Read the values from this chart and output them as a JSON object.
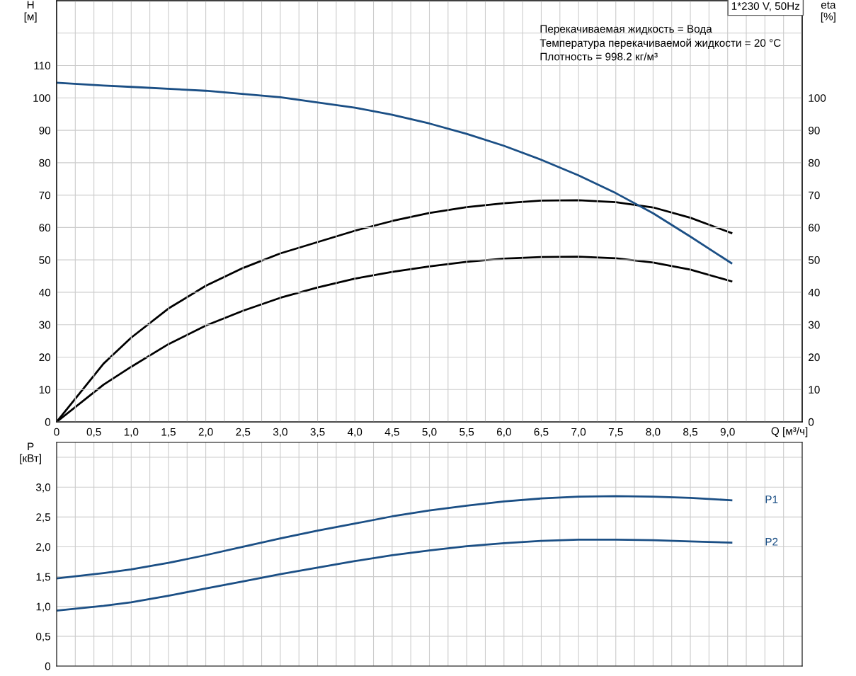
{
  "chart_data": [
    {
      "type": "line",
      "title": "1*230 V, 50Hz",
      "ylabel": "H\n[м]",
      "y2label": "eta\n[%]",
      "xlabel": "Q [м³/ч]",
      "annotations": [
        "Перекачиваемая жидкость = Вода",
        "Температура перекачиваемой жидкости = 20 °C",
        "Плотность = 998.2 кг/м³"
      ],
      "xlim": [
        0,
        10
      ],
      "ylim": [
        0,
        130
      ],
      "y2lim": [
        0,
        130
      ],
      "xticks": [
        0,
        {
          "value": 0.25,
          "label": null
        },
        {
          "value": 0.5,
          "label": "0,5"
        },
        {
          "value": 0.75,
          "label": null
        },
        {
          "value": 1.0,
          "label": "1,0"
        },
        {
          "value": 1.25,
          "label": null
        },
        {
          "value": 1.5,
          "label": "1,5"
        },
        {
          "value": 1.75,
          "label": null
        },
        {
          "value": 2.0,
          "label": "2,0"
        },
        {
          "value": 2.25,
          "label": null
        },
        {
          "value": 2.5,
          "label": "2,5"
        },
        {
          "value": 2.75,
          "label": null
        },
        {
          "value": 3.0,
          "label": "3,0"
        },
        {
          "value": 3.25,
          "label": null
        },
        {
          "value": 3.5,
          "label": "3,5"
        },
        {
          "value": 3.75,
          "label": null
        },
        {
          "value": 4.0,
          "label": "4,0"
        },
        {
          "value": 4.25,
          "label": null
        },
        {
          "value": 4.5,
          "label": "4,5"
        },
        {
          "value": 4.75,
          "label": null
        },
        {
          "value": 5.0,
          "label": "5,0"
        },
        {
          "value": 5.25,
          "label": null
        },
        {
          "value": 5.5,
          "label": "5,5"
        },
        {
          "value": 5.75,
          "label": null
        },
        {
          "value": 6.0,
          "label": "6,0"
        },
        {
          "value": 6.25,
          "label": null
        },
        {
          "value": 6.5,
          "label": "6,5"
        },
        {
          "value": 6.75,
          "label": null
        },
        {
          "value": 7.0,
          "label": "7,0"
        },
        {
          "value": 7.25,
          "label": null
        },
        {
          "value": 7.5,
          "label": "7,5"
        },
        {
          "value": 7.75,
          "label": null
        },
        {
          "value": 8.0,
          "label": "8,0"
        },
        {
          "value": 8.25,
          "label": null
        },
        {
          "value": 8.5,
          "label": "8,5"
        },
        {
          "value": 8.75,
          "label": null
        },
        {
          "value": 9.0,
          "label": "9,0"
        },
        {
          "value": 9.25,
          "label": null
        },
        {
          "value": 9.5,
          "label": null
        },
        {
          "value": 9.75,
          "label": null
        }
      ],
      "yticks": [
        0,
        10,
        20,
        30,
        40,
        50,
        60,
        70,
        80,
        90,
        100,
        110,
        {
          "value": 120,
          "label": null
        }
      ],
      "y2ticks": [
        0,
        10,
        20,
        30,
        40,
        50,
        60,
        70,
        80,
        90,
        100
      ],
      "grid": true,
      "legend": false,
      "series": [
        {
          "color": "#1b4f85",
          "x": [
            0,
            0.63,
            1,
            2,
            3,
            4,
            4.5,
            5,
            5.5,
            6,
            6.5,
            7,
            7.5,
            8,
            8.5,
            9.05
          ],
          "values": [
            104.7,
            103.8,
            103.4,
            102.2,
            100.2,
            97.0,
            94.8,
            92.1,
            88.9,
            85.2,
            80.9,
            76.1,
            70.6,
            64.4,
            57.2,
            49.0
          ]
        },
        {
          "color": "#000000",
          "axis": "y2",
          "x": [
            0,
            0.63,
            1.0,
            1.5,
            2.0,
            2.5,
            3.0,
            3.5,
            4.0,
            4.5,
            5.0,
            5.5,
            6.0,
            6.5,
            7.0,
            7.5,
            8.0,
            8.5,
            9.05
          ],
          "values": [
            0,
            18,
            26,
            35,
            42,
            47.5,
            52,
            55.5,
            59,
            62,
            64.5,
            66.3,
            67.5,
            68.3,
            68.4,
            67.8,
            66.2,
            63,
            58.3
          ]
        },
        {
          "color": "#000000",
          "axis": "y2",
          "x": [
            0,
            0.63,
            1.0,
            1.5,
            2.0,
            2.5,
            3.0,
            3.5,
            4.0,
            4.5,
            5.0,
            5.5,
            6.0,
            6.5,
            7.0,
            7.5,
            8.0,
            8.5,
            9.05
          ],
          "values": [
            0,
            11.5,
            17,
            24,
            29.7,
            34.3,
            38.3,
            41.5,
            44.2,
            46.3,
            48.0,
            49.4,
            50.4,
            50.9,
            51.0,
            50.5,
            49.2,
            47,
            43.4
          ]
        }
      ]
    },
    {
      "type": "line",
      "ylabel": "P\n[кВт]",
      "xlim": [
        0,
        10
      ],
      "ylim": [
        0,
        3.75
      ],
      "tick_labels": "y",
      "xticks": [
        0,
        0.25,
        0.5,
        0.75,
        1.0,
        1.25,
        1.5,
        1.75,
        2.0,
        2.25,
        2.5,
        2.75,
        3.0,
        3.25,
        3.5,
        3.75,
        4.0,
        4.25,
        4.5,
        4.75,
        5.0,
        5.25,
        5.5,
        5.75,
        6.0,
        6.25,
        6.5,
        6.75,
        7.0,
        7.25,
        7.5,
        7.75,
        8.0,
        8.25,
        8.5,
        8.75,
        9.0,
        9.25,
        9.5,
        9.75
      ],
      "yticks": [
        0,
        {
          "value": 0.5,
          "label": "0,5"
        },
        {
          "value": 1.0,
          "label": "1,0"
        },
        {
          "value": 1.5,
          "label": "1,5"
        },
        {
          "value": 2.0,
          "label": "2,0"
        },
        {
          "value": 2.5,
          "label": "2,5"
        },
        {
          "value": 3.0,
          "label": "3,0"
        },
        {
          "value": 3.5,
          "label": null
        }
      ],
      "grid": true,
      "legend": false,
      "series": [
        {
          "name": "P1",
          "color": "#1b4f85",
          "x": [
            0,
            0.63,
            1,
            1.5,
            2,
            2.5,
            3,
            3.5,
            4,
            4.5,
            5,
            5.5,
            6,
            6.5,
            7,
            7.5,
            8,
            8.5,
            9.05
          ],
          "values": [
            1.47,
            1.56,
            1.62,
            1.73,
            1.86,
            2.0,
            2.14,
            2.27,
            2.39,
            2.51,
            2.61,
            2.69,
            2.76,
            2.81,
            2.84,
            2.85,
            2.84,
            2.82,
            2.78
          ]
        },
        {
          "name": "P2",
          "color": "#1b4f85",
          "x": [
            0,
            0.63,
            1,
            1.5,
            2,
            2.5,
            3,
            3.5,
            4,
            4.5,
            5,
            5.5,
            6,
            6.5,
            7,
            7.5,
            8,
            8.5,
            9.05
          ],
          "values": [
            0.93,
            1.01,
            1.07,
            1.18,
            1.3,
            1.42,
            1.54,
            1.65,
            1.76,
            1.86,
            1.94,
            2.01,
            2.06,
            2.1,
            2.12,
            2.12,
            2.11,
            2.09,
            2.07
          ]
        }
      ]
    }
  ]
}
